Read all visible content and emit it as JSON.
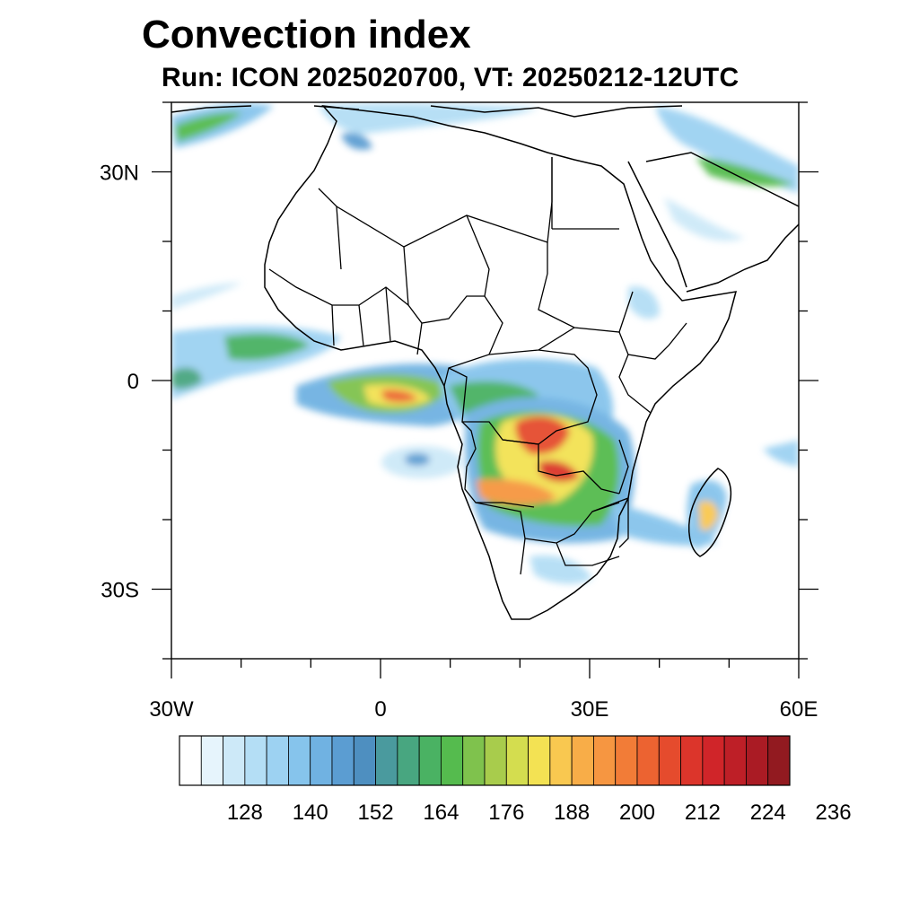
{
  "title": "Convection index",
  "subtitle": "Run: ICON 2025020700,  VT: 20250212-12UTC",
  "map": {
    "region": "Africa",
    "lon_range": [
      -30,
      60
    ],
    "lat_range": [
      -40,
      40
    ],
    "x_ticks": [
      {
        "lon": -30,
        "label": "30W"
      },
      {
        "lon": 0,
        "label": "0"
      },
      {
        "lon": 30,
        "label": "30E"
      },
      {
        "lon": 60,
        "label": "60E"
      }
    ],
    "y_ticks": [
      {
        "lat": 30,
        "label": "30N"
      },
      {
        "lat": 0,
        "label": "0"
      },
      {
        "lat": -30,
        "label": "30S"
      }
    ]
  },
  "colorbar": {
    "labels": [
      "128",
      "140",
      "152",
      "164",
      "176",
      "188",
      "200",
      "212",
      "224",
      "236"
    ],
    "colors": [
      "#ffffff",
      "#e6f4fc",
      "#cde9f8",
      "#b4def5",
      "#9dd2f2",
      "#86c4ec",
      "#70b2e2",
      "#5b9dd2",
      "#4e8fc0",
      "#4a9a9e",
      "#48a680",
      "#4ab263",
      "#55bb4e",
      "#7fc24d",
      "#a8cc4c",
      "#d4dd4f",
      "#f3e253",
      "#f9c850",
      "#f8ad48",
      "#f69641",
      "#f27c37",
      "#ec6331",
      "#e54b2d",
      "#dc352b",
      "#d02529",
      "#be1f27",
      "#aa1b24",
      "#921a20"
    ]
  }
}
